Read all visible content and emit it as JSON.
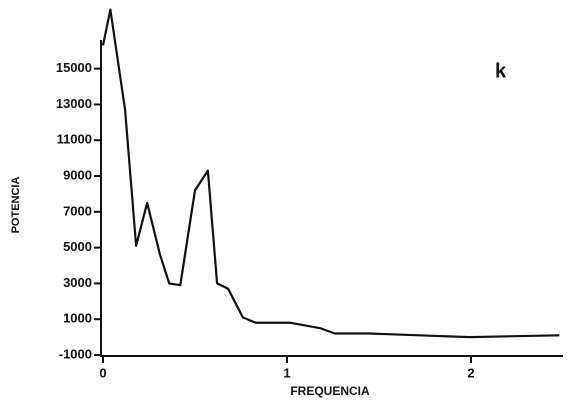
{
  "chart_data": {
    "type": "line",
    "annotation": "k",
    "xlabel": "FREQUENCIA",
    "ylabel": "POTENCIA",
    "x": [
      0,
      0.04,
      0.12,
      0.18,
      0.24,
      0.31,
      0.36,
      0.42,
      0.5,
      0.57,
      0.62,
      0.68,
      0.76,
      0.83,
      1.02,
      1.18,
      1.26,
      1.32,
      1.45,
      1.72,
      1.99,
      2.48
    ],
    "series": [
      {
        "color": "#111111",
        "values": [
          16300,
          18300,
          12700,
          5100,
          7500,
          4600,
          3000,
          2900,
          8200,
          9300,
          3000,
          2700,
          1100,
          800,
          800,
          500,
          200,
          200,
          200,
          100,
          0,
          100
        ]
      }
    ],
    "xlim": [
      0,
      2.5
    ],
    "ylim": [
      -1000,
      18500
    ],
    "xticks": [
      0,
      1,
      2
    ],
    "yticks": [
      -1000,
      1000,
      3000,
      5000,
      7000,
      9000,
      11000,
      13000,
      15000
    ]
  }
}
